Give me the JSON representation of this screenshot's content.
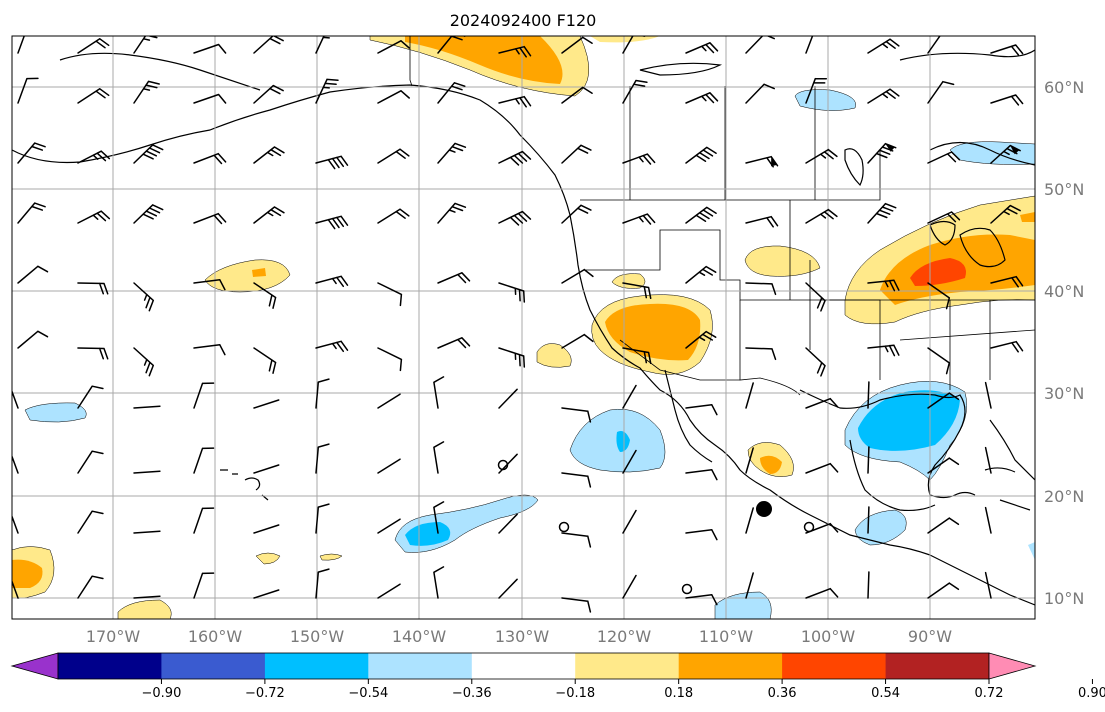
{
  "title": "2024092400 F120",
  "lat_labels": [
    "60°N",
    "50°N",
    "40°N",
    "30°N",
    "20°N",
    "10°N"
  ],
  "lon_labels": [
    "170°W",
    "160°W",
    "150°W",
    "140°W",
    "130°W",
    "120°W",
    "110°W",
    "100°W",
    "90°W"
  ],
  "colorbar": {
    "ticks": [
      "−0.90",
      "−0.72",
      "−0.54",
      "−0.36",
      "−0.18",
      "0.18",
      "0.36",
      "0.54",
      "0.72",
      "0.90"
    ],
    "colors": [
      "#9932cc",
      "#00008b",
      "#3a5bd0",
      "#00bfff",
      "#ade3ff",
      "#ffffff",
      "#ffe98a",
      "#ffa500",
      "#ff4500",
      "#b22222",
      "#ff8cb4"
    ]
  },
  "colors": {
    "positive_light": "#ffe98a",
    "positive_mid": "#ffa500",
    "positive_strong": "#ff4500",
    "negative_light": "#ade3ff",
    "negative_mid": "#00bfff",
    "gridline": "#a9a9a9",
    "axis_label": "#7a7a7a"
  },
  "markers": [
    "storm-center-dot",
    "open-circle-markers"
  ]
}
